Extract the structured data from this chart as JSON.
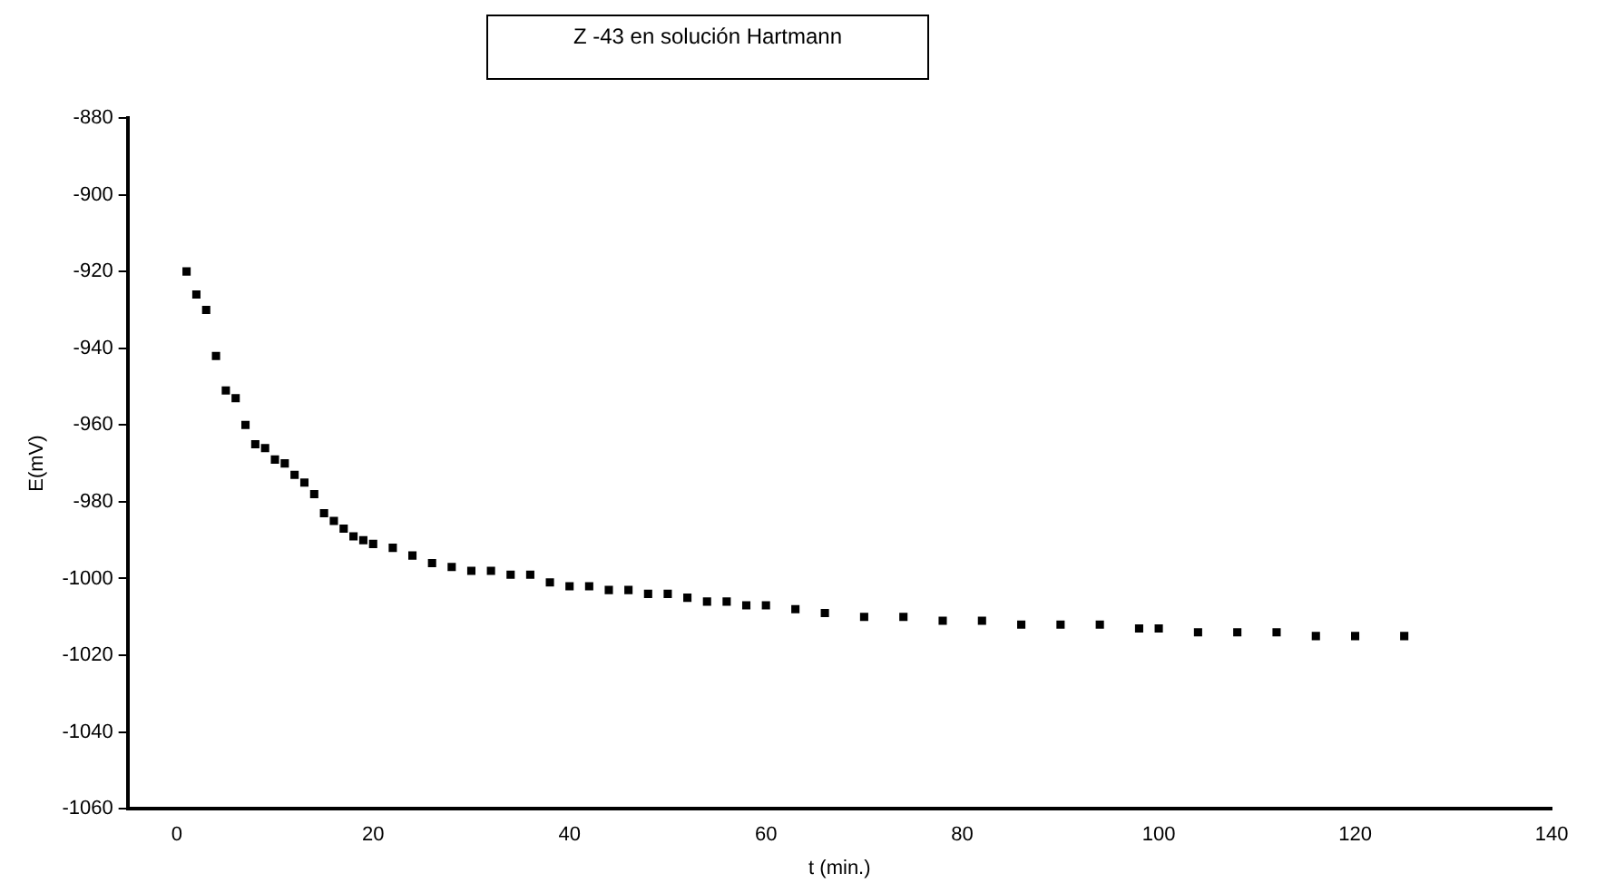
{
  "chart_data": {
    "type": "scatter",
    "title": "Z -43 en solución Hartmann",
    "xlabel": "t (min.)",
    "ylabel": "E(mV)",
    "xlim": [
      -5,
      140
    ],
    "xticks": [
      0,
      20,
      40,
      60,
      80,
      100,
      120,
      140
    ],
    "ylim": [
      -1060,
      -880
    ],
    "yticks": [
      -1060,
      -1040,
      -1020,
      -1000,
      -980,
      -960,
      -940,
      -920,
      -900,
      -880
    ],
    "grid": false,
    "legend": false,
    "marker": "square",
    "series": [
      {
        "color": "#000000",
        "x": [
          1,
          2,
          3,
          4,
          5,
          6,
          7,
          8,
          9,
          10,
          11,
          12,
          13,
          14,
          15,
          16,
          17,
          18,
          19,
          20,
          22,
          24,
          26,
          28,
          30,
          32,
          34,
          36,
          38,
          40,
          42,
          44,
          46,
          48,
          50,
          52,
          54,
          56,
          58,
          60,
          63,
          66,
          70,
          74,
          78,
          82,
          86,
          90,
          94,
          98,
          100,
          104,
          108,
          112,
          116,
          120,
          125
        ],
        "values": [
          -920,
          -926,
          -930,
          -942,
          -951,
          -953,
          -960,
          -965,
          -966,
          -969,
          -970,
          -973,
          -975,
          -978,
          -983,
          -985,
          -987,
          -989,
          -990,
          -991,
          -992,
          -994,
          -996,
          -997,
          -998,
          -998,
          -999,
          -999,
          -1001,
          -1002,
          -1002,
          -1003,
          -1003,
          -1004,
          -1004,
          -1005,
          -1006,
          -1006,
          -1007,
          -1007,
          -1008,
          -1009,
          -1010,
          -1010,
          -1011,
          -1011,
          -1012,
          -1012,
          -1012,
          -1013,
          -1013,
          -1014,
          -1014,
          -1014,
          -1015,
          -1015,
          -1015
        ]
      }
    ]
  }
}
